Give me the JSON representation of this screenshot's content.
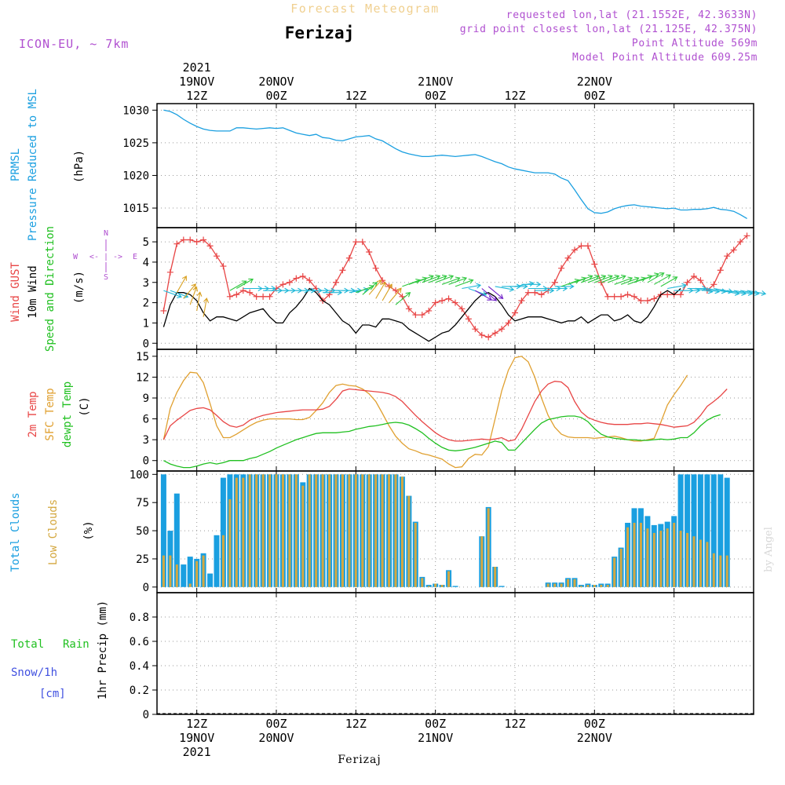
{
  "header": {
    "top_title": "Forecast Meteogram",
    "location": "Ferizaj",
    "model": "ICON-EU, ~ 7km",
    "requested": "requested lon,lat (21.1552E, 42.3633N)",
    "grid_point": "grid point closest lon,lat (21.125E, 42.375N)",
    "point_altitude": "Point Altitude 569m",
    "model_altitude": "Model Point Altitude 609.25m",
    "watermark": "by Angel",
    "footer": "Ferizaj"
  },
  "time_axis": {
    "top_labels": [
      {
        "h": 12,
        "lines": [
          "2021",
          "19NOV",
          "12Z"
        ]
      },
      {
        "h": 24,
        "lines": [
          "20NOV",
          "00Z"
        ]
      },
      {
        "h": 36,
        "lines": [
          "12Z"
        ]
      },
      {
        "h": 48,
        "lines": [
          "21NOV",
          "00Z"
        ]
      },
      {
        "h": 60,
        "lines": [
          "12Z"
        ]
      },
      {
        "h": 72,
        "lines": [
          "22NOV",
          "00Z"
        ]
      }
    ],
    "bottom_labels": [
      {
        "h": 12,
        "lines": [
          "12Z",
          "19NOV",
          "2021"
        ]
      },
      {
        "h": 24,
        "lines": [
          "00Z",
          "20NOV"
        ]
      },
      {
        "h": 36,
        "lines": [
          "12Z"
        ]
      },
      {
        "h": 48,
        "lines": [
          "00Z",
          "21NOV"
        ]
      },
      {
        "h": 60,
        "lines": [
          "12Z"
        ]
      },
      {
        "h": 72,
        "lines": [
          "00Z",
          "22NOV"
        ]
      }
    ]
  },
  "panel_labels": {
    "pressure": {
      "l1": "PRMSL",
      "l2": "Pressure Reduced to MSL",
      "unit": "(hPa)"
    },
    "wind": {
      "l1": "Wind GUST",
      "l2": "10m Wind",
      "l3": "Speed and Direction",
      "unit": "(m/s)",
      "compass_n": "N",
      "compass_s": "S",
      "compass_w": "W",
      "compass_e": "E",
      "compass_mid": "<- | ->"
    },
    "temp": {
      "l1": "2m Temp",
      "l2": "SFC Temp",
      "l3": "dewpt Temp",
      "unit": "(C)"
    },
    "clouds": {
      "l1": "Total Clouds",
      "l2": "Low Clouds",
      "unit": "(%)"
    },
    "precip": {
      "l1": "Total",
      "l1b": "Rain",
      "l2": "Snow/1h",
      "l3": "[cm]",
      "unit": "1hr Precip (mm)"
    }
  },
  "colors": {
    "pressure": "#1a9fe0",
    "gust": "#e84545",
    "wind": "#000000",
    "temp2m": "#e84545",
    "sfc": "#e0a030",
    "dew": "#20c020",
    "total_clouds": "#1a9fe0",
    "low_clouds": "#d4a840",
    "label_purple": "#b050d0",
    "rain": "#20c020",
    "snow": "#4050e0"
  },
  "chart_data": [
    {
      "type": "line",
      "name": "pressure",
      "ylim": [
        1012,
        1031
      ],
      "yticks": [
        1015,
        1020,
        1025,
        1030
      ],
      "x_start": 7,
      "x_step": 1,
      "series": [
        {
          "name": "PRMSL",
          "values": [
            1030.0,
            1029.8,
            1029.3,
            1028.6,
            1028.0,
            1027.5,
            1027.1,
            1026.9,
            1026.8,
            1026.8,
            1026.8,
            1027.3,
            1027.3,
            1027.2,
            1027.1,
            1027.2,
            1027.3,
            1027.2,
            1027.3,
            1026.9,
            1026.5,
            1026.3,
            1026.1,
            1026.3,
            1025.8,
            1025.7,
            1025.4,
            1025.3,
            1025.6,
            1025.9,
            1026.0,
            1026.1,
            1025.6,
            1025.3,
            1024.7,
            1024.1,
            1023.6,
            1023.3,
            1023.1,
            1022.9,
            1022.9,
            1023.0,
            1023.1,
            1023.0,
            1022.9,
            1023.0,
            1023.1,
            1023.2,
            1022.9,
            1022.5,
            1022.1,
            1021.8,
            1021.3,
            1021.0,
            1020.8,
            1020.6,
            1020.4,
            1020.4,
            1020.4,
            1020.2,
            1019.6,
            1019.2,
            1017.8,
            1016.3,
            1014.9,
            1014.3,
            1014.2,
            1014.4,
            1014.9,
            1015.2,
            1015.4,
            1015.5,
            1015.3,
            1015.2,
            1015.1,
            1015.0,
            1014.9,
            1015.0,
            1014.7,
            1014.7,
            1014.8,
            1014.8,
            1014.9,
            1015.1,
            1014.8,
            1014.7,
            1014.5,
            1014.0,
            1013.4
          ]
        }
      ]
    },
    {
      "type": "line",
      "name": "wind",
      "ylim": [
        -0.3,
        5.7
      ],
      "yticks": [
        0,
        1,
        2,
        3,
        4,
        5
      ],
      "x_start": 7,
      "x_step": 1,
      "series": [
        {
          "name": "Wind GUST",
          "values": [
            1.6,
            3.5,
            4.9,
            5.1,
            5.1,
            5.0,
            5.1,
            4.8,
            4.3,
            3.8,
            2.3,
            2.4,
            2.6,
            2.5,
            2.3,
            2.3,
            2.3,
            2.7,
            2.9,
            3.0,
            3.2,
            3.3,
            3.1,
            2.7,
            2.1,
            2.4,
            3.0,
            3.6,
            4.2,
            5.0,
            5.0,
            4.5,
            3.7,
            3.1,
            2.8,
            2.6,
            2.3,
            1.7,
            1.4,
            1.4,
            1.6,
            2.0,
            2.1,
            2.2,
            2.0,
            1.7,
            1.2,
            0.7,
            0.4,
            0.3,
            0.5,
            0.7,
            1.0,
            1.5,
            2.1,
            2.5,
            2.5,
            2.4,
            2.6,
            3.0,
            3.7,
            4.2,
            4.6,
            4.8,
            4.8,
            3.9,
            3.0,
            2.3,
            2.3,
            2.3,
            2.4,
            2.3,
            2.1,
            2.1,
            2.2,
            2.4,
            2.4,
            2.4,
            2.4,
            3.0,
            3.3,
            3.1,
            2.6,
            2.9,
            3.6,
            4.3,
            4.6,
            5.0,
            5.3
          ]
        },
        {
          "name": "10m Wind",
          "values": [
            0.8,
            1.9,
            2.5,
            2.5,
            2.4,
            2.1,
            1.5,
            1.1,
            1.3,
            1.3,
            1.2,
            1.1,
            1.3,
            1.5,
            1.6,
            1.7,
            1.3,
            1.0,
            1.0,
            1.5,
            1.8,
            2.2,
            2.7,
            2.5,
            2.1,
            1.9,
            1.5,
            1.1,
            0.9,
            0.5,
            0.9,
            0.9,
            0.8,
            1.2,
            1.2,
            1.1,
            1.0,
            0.7,
            0.5,
            0.3,
            0.1,
            0.3,
            0.5,
            0.6,
            0.9,
            1.3,
            1.7,
            2.1,
            2.4,
            2.5,
            2.3,
            1.9,
            1.4,
            1.1,
            1.2,
            1.3,
            1.3,
            1.3,
            1.2,
            1.1,
            1.0,
            1.1,
            1.1,
            1.3,
            1.0,
            1.2,
            1.4,
            1.4,
            1.1,
            1.2,
            1.4,
            1.1,
            1.0,
            1.3,
            1.8,
            2.4,
            2.6,
            2.4,
            2.7
          ]
        }
      ],
      "arrows": {
        "x_start": 7,
        "x_step": 1,
        "speed": [
          2.6,
          2.6,
          2.5,
          2.2,
          1.9,
          1.6,
          1.3,
          null,
          null,
          null,
          2.6,
          2.7,
          2.7,
          2.7,
          2.7,
          2.6,
          2.6,
          2.6,
          2.6,
          2.6,
          2.6,
          2.6,
          2.6,
          2.6,
          2.5,
          2.6,
          2.6,
          2.6,
          2.5,
          2.5,
          2.4,
          2.4,
          2.2,
          2.1,
          2.0,
          1.9,
          2.8,
          2.9,
          3.0,
          3.0,
          3.0,
          3.0,
          2.9,
          2.9,
          2.8,
          2.7,
          2.7,
          2.6,
          2.7,
          2.8,
          2.8,
          2.8,
          2.8,
          2.8,
          2.9,
          2.7,
          2.6,
          2.7,
          2.7,
          2.8,
          2.8,
          2.9,
          3.0,
          3.0,
          3.0,
          3.0,
          3.0,
          3.0,
          2.9,
          2.9,
          2.9,
          3.0,
          3.1,
          3.0,
          2.9,
          2.8,
          2.7,
          2.6,
          2.6,
          2.7,
          2.7,
          2.7,
          2.7,
          2.7,
          2.6,
          2.6,
          2.6,
          2.6,
          2.6
        ],
        "dir": [
          110,
          110,
          30,
          40,
          20,
          10,
          10,
          null,
          null,
          null,
          60,
          60,
          90,
          90,
          90,
          90,
          90,
          90,
          90,
          90,
          90,
          90,
          90,
          90,
          90,
          90,
          90,
          90,
          80,
          70,
          50,
          40,
          30,
          30,
          40,
          50,
          70,
          70,
          70,
          70,
          70,
          70,
          70,
          70,
          70,
          80,
          110,
          120,
          130,
          130,
          100,
          90,
          90,
          80,
          90,
          90,
          90,
          90,
          90,
          90,
          70,
          70,
          70,
          70,
          70,
          70,
          70,
          70,
          70,
          70,
          70,
          70,
          70,
          60,
          60,
          60,
          80,
          90,
          90,
          90,
          100,
          100,
          100,
          100,
          100,
          100,
          100,
          100,
          100
        ]
      }
    },
    {
      "type": "line",
      "name": "temperature",
      "ylim": [
        -1.5,
        16
      ],
      "yticks": [
        0,
        3,
        6,
        9,
        12,
        15
      ],
      "x_start": 7,
      "x_step": 1,
      "series": [
        {
          "name": "2m Temp",
          "values": [
            3.0,
            5.0,
            5.8,
            6.5,
            7.2,
            7.5,
            7.6,
            7.3,
            6.5,
            5.6,
            5.0,
            4.8,
            5.1,
            5.8,
            6.2,
            6.5,
            6.7,
            6.9,
            7.0,
            7.1,
            7.2,
            7.3,
            7.3,
            7.3,
            7.4,
            7.8,
            8.8,
            10.0,
            10.3,
            10.2,
            10.1,
            10.0,
            9.9,
            9.8,
            9.6,
            9.2,
            8.5,
            7.5,
            6.5,
            5.6,
            4.8,
            4.0,
            3.4,
            3.0,
            2.8,
            2.8,
            2.9,
            3.0,
            3.1,
            3.0,
            3.1,
            3.3,
            2.8,
            3.0,
            4.5,
            6.5,
            8.5,
            10.0,
            11.0,
            11.4,
            11.3,
            10.5,
            8.5,
            7.0,
            6.2,
            5.8,
            5.5,
            5.3,
            5.2,
            5.2,
            5.2,
            5.3,
            5.3,
            5.4,
            5.3,
            5.2,
            5.0,
            4.8,
            4.9,
            5.0,
            5.5,
            6.5,
            7.8,
            8.5,
            9.3,
            10.3
          ]
        },
        {
          "name": "SFC Temp",
          "values": [
            3.0,
            7.5,
            9.8,
            11.5,
            12.7,
            12.6,
            11.2,
            8.2,
            5.0,
            3.3,
            3.3,
            3.8,
            4.4,
            5.0,
            5.5,
            5.8,
            6.0,
            6.0,
            6.0,
            6.0,
            5.9,
            5.9,
            6.2,
            7.2,
            8.3,
            9.8,
            10.8,
            11.0,
            10.8,
            10.7,
            10.3,
            9.6,
            8.5,
            6.8,
            5.0,
            3.5,
            2.5,
            1.7,
            1.4,
            1.0,
            0.8,
            0.5,
            0.2,
            -0.5,
            -1.0,
            -0.9,
            0.3,
            0.9,
            0.8,
            2.0,
            6.0,
            10.0,
            13.0,
            14.8,
            15.0,
            14.2,
            12.0,
            9.0,
            6.5,
            4.8,
            3.8,
            3.4,
            3.3,
            3.3,
            3.3,
            3.2,
            3.3,
            3.4,
            3.5,
            3.3,
            3.0,
            2.8,
            2.8,
            3.0,
            3.2,
            5.5,
            8.0,
            9.5,
            10.8,
            12.3
          ]
        },
        {
          "name": "dewpt Temp",
          "values": [
            0.0,
            -0.5,
            -0.8,
            -1.0,
            -1.0,
            -0.8,
            -0.5,
            -0.3,
            -0.5,
            -0.3,
            0.0,
            0.0,
            0.0,
            0.3,
            0.5,
            0.9,
            1.3,
            1.8,
            2.2,
            2.6,
            3.0,
            3.3,
            3.6,
            3.9,
            4.0,
            4.0,
            4.0,
            4.1,
            4.2,
            4.5,
            4.7,
            4.9,
            5.0,
            5.2,
            5.4,
            5.5,
            5.4,
            5.1,
            4.6,
            4.0,
            3.2,
            2.5,
            1.9,
            1.5,
            1.4,
            1.5,
            1.7,
            1.9,
            2.2,
            2.5,
            2.8,
            2.6,
            1.5,
            1.5,
            2.5,
            3.5,
            4.5,
            5.4,
            5.9,
            6.1,
            6.3,
            6.4,
            6.4,
            6.2,
            5.6,
            4.6,
            3.8,
            3.4,
            3.2,
            3.1,
            3.0,
            3.0,
            2.9,
            2.9,
            3.0,
            3.1,
            3.0,
            3.1,
            3.3,
            3.3,
            4.0,
            5.0,
            5.8,
            6.3,
            6.6
          ]
        }
      ]
    },
    {
      "type": "bar",
      "name": "clouds",
      "ylim": [
        -5,
        103
      ],
      "yticks": [
        0,
        25,
        50,
        75,
        100
      ],
      "x_start": 7,
      "x_step": 1,
      "series": [
        {
          "name": "Total Clouds",
          "values": [
            100,
            50,
            83,
            20,
            27,
            25,
            30,
            12,
            46,
            97,
            100,
            100,
            100,
            100,
            100,
            100,
            100,
            100,
            100,
            100,
            100,
            93,
            100,
            100,
            100,
            100,
            100,
            100,
            100,
            100,
            100,
            100,
            100,
            100,
            100,
            100,
            98,
            81,
            58,
            9,
            2,
            3,
            2,
            15,
            1,
            0,
            0,
            0,
            45,
            71,
            18,
            1,
            0,
            0,
            0,
            0,
            0,
            0,
            4,
            4,
            4,
            8,
            8,
            2,
            3,
            2,
            3,
            3,
            27,
            35,
            57,
            70,
            70,
            63,
            55,
            56,
            58,
            63,
            100,
            100,
            100,
            100,
            100,
            100,
            100,
            97
          ]
        },
        {
          "name": "Low Clouds",
          "values": [
            28,
            28,
            20,
            0,
            3,
            23,
            28,
            0,
            0,
            46,
            78,
            97,
            97,
            100,
            100,
            100,
            100,
            100,
            100,
            100,
            100,
            90,
            100,
            100,
            100,
            100,
            100,
            100,
            100,
            100,
            100,
            100,
            100,
            100,
            100,
            100,
            98,
            81,
            57,
            8,
            1,
            3,
            2,
            14,
            0,
            0,
            0,
            0,
            45,
            70,
            18,
            0,
            0,
            0,
            0,
            0,
            0,
            0,
            3,
            3,
            3,
            7,
            7,
            1,
            2,
            2,
            2,
            2,
            26,
            34,
            53,
            57,
            57,
            52,
            48,
            50,
            52,
            57,
            50,
            48,
            45,
            42,
            40,
            30,
            28,
            28
          ]
        }
      ]
    },
    {
      "type": "bar",
      "name": "precipitation",
      "ylim": [
        0,
        1.0
      ],
      "yticks": [
        0,
        0.2,
        0.4,
        0.6,
        0.8
      ],
      "ytick_labels": [
        "0",
        "0.2",
        "0.4",
        "0.6",
        "0.8"
      ],
      "series": [
        {
          "name": "Total Rain",
          "values": []
        },
        {
          "name": "Snow/1h",
          "values": []
        }
      ]
    }
  ]
}
